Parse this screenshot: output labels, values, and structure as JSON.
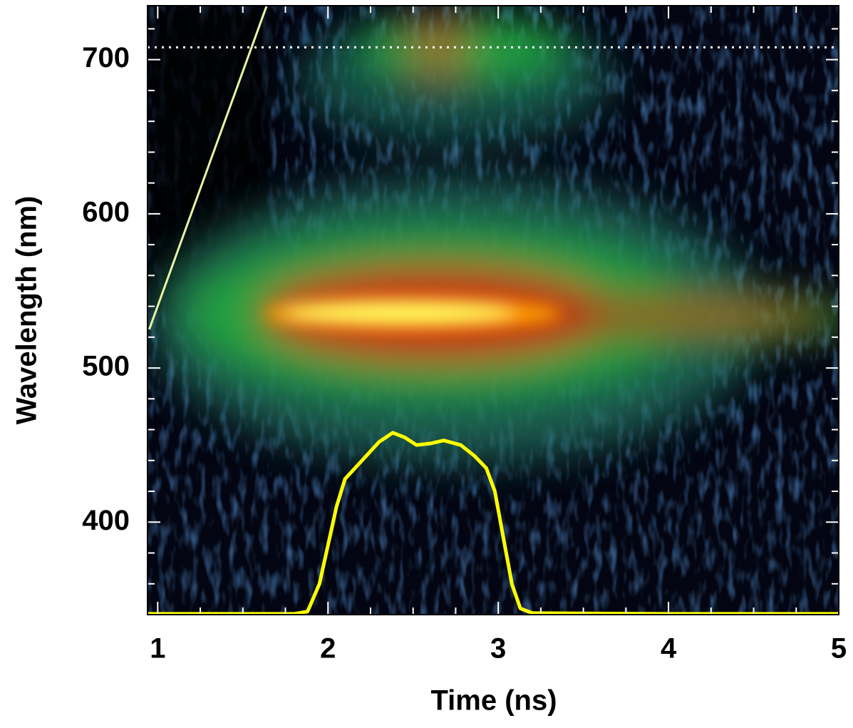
{
  "chart_data": {
    "type": "line",
    "x_label": "Time (ns)",
    "y_label": "Wavelength (nm)",
    "xlim": [
      0.94,
      5
    ],
    "xticks": [
      1,
      2,
      3,
      4,
      5
    ],
    "ylim": [
      340,
      735
    ],
    "yticks": [
      400,
      500,
      600,
      700
    ],
    "color": "#ffff00",
    "x": [
      0.94,
      1.8,
      1.88,
      1.95,
      2.0,
      2.05,
      2.1,
      2.2,
      2.3,
      2.38,
      2.45,
      2.52,
      2.6,
      2.68,
      2.78,
      2.86,
      2.93,
      2.98,
      3.03,
      3.08,
      3.13,
      3.2,
      4.0,
      5.0
    ],
    "values": [
      340.5,
      340.5,
      342,
      360,
      385,
      410,
      428,
      440,
      452,
      458,
      455,
      450,
      451,
      453,
      450,
      443,
      435,
      420,
      390,
      360,
      344,
      341,
      340.5,
      340.5
    ],
    "hline": {
      "value": 708,
      "color": "#ffffff"
    },
    "diagonal": {
      "x": [
        0.95,
        1.64
      ],
      "values": [
        525,
        735
      ],
      "color": "#e8f5a0"
    }
  }
}
